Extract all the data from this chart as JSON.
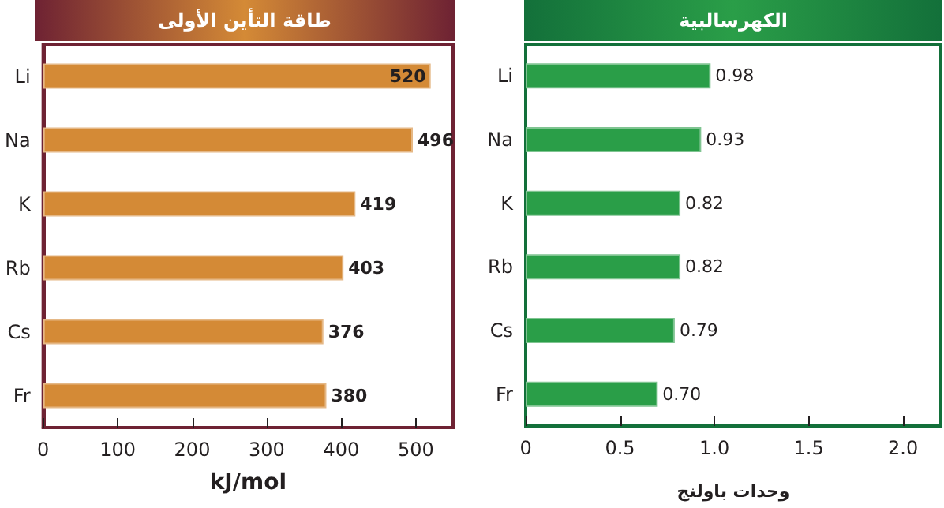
{
  "chart_data": [
    {
      "type": "bar",
      "orientation": "horizontal",
      "title": "طاقة التأين الأولى",
      "xlabel": "kJ/mol",
      "categories": [
        "Li",
        "Na",
        "K",
        "Rb",
        "Cs",
        "Fr"
      ],
      "values": [
        520,
        496,
        419,
        403,
        376,
        380
      ],
      "color": "#d48a36",
      "xlim": [
        0,
        550
      ],
      "xticks": [
        0,
        100,
        200,
        300,
        400,
        500
      ],
      "data_labels": true,
      "grid": false
    },
    {
      "type": "bar",
      "orientation": "horizontal",
      "title": "الكهرسالبية",
      "xlabel": "وحدات باولنج",
      "categories": [
        "Li",
        "Na",
        "K",
        "Rb",
        "Cs",
        "Fr"
      ],
      "values": [
        0.98,
        0.93,
        0.82,
        0.82,
        0.79,
        0.7
      ],
      "color": "#2a9e48",
      "xlim": [
        0,
        2.2
      ],
      "xticks": [
        0,
        0.5,
        {
          "value": 1,
          "label": "1.0"
        },
        1.5,
        {
          "value": 2,
          "label": "2.0"
        }
      ],
      "value_labels": [
        "0.98",
        "0.93",
        "0.82",
        "0.82",
        "0.79",
        "0.70"
      ],
      "grid": false
    }
  ]
}
